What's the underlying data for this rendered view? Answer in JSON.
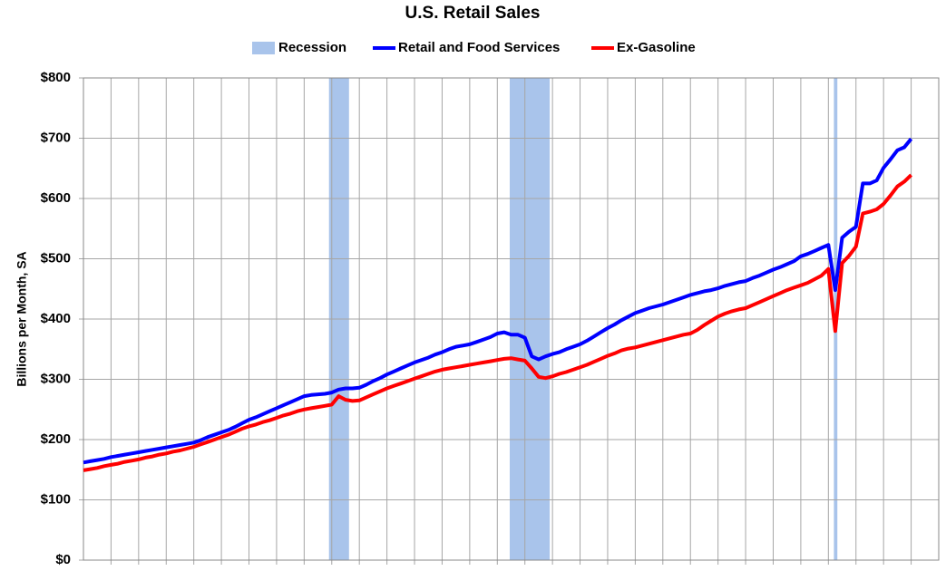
{
  "chart_data": {
    "type": "line",
    "title": "U.S. Retail Sales",
    "ylabel": "Billions per Month, SA",
    "categories": [
      null,
      null,
      null,
      null,
      null,
      null,
      null,
      null,
      null,
      null,
      null,
      null,
      null,
      null,
      null,
      null,
      null,
      null,
      null,
      null,
      null,
      null,
      null,
      null,
      null,
      null,
      null,
      null,
      null,
      null,
      null,
      null,
      null,
      null,
      null,
      null,
      null,
      null,
      null,
      null,
      null,
      null,
      null,
      null,
      null,
      null,
      null,
      null,
      null,
      null,
      null,
      null,
      null,
      null,
      null,
      null,
      null,
      null,
      null,
      null,
      null,
      null,
      null,
      null,
      null,
      null,
      null,
      null,
      null,
      null,
      null,
      null,
      null,
      null,
      null,
      null,
      null,
      null,
      null,
      null,
      null,
      null,
      null,
      null,
      null,
      null,
      null,
      null,
      null,
      null,
      null,
      null,
      null,
      null,
      null,
      null,
      null,
      null,
      null,
      null,
      null,
      null,
      null,
      null,
      null,
      null,
      null,
      null,
      null,
      null,
      null,
      null,
      null,
      null,
      null,
      null,
      null,
      null,
      null,
      null,
      null
    ],
    "series": [
      {
        "name": "Retail and Food Services",
        "color": "#0000ff",
        "values": [
          162,
          164,
          166,
          168,
          171,
          173,
          175,
          177,
          179,
          181,
          183,
          185,
          187,
          189,
          191,
          193,
          195,
          199,
          204,
          208,
          212,
          216,
          221,
          227,
          233,
          237,
          242,
          247,
          252,
          257,
          262,
          267,
          272,
          274,
          275,
          276,
          278,
          283,
          285,
          285,
          286,
          291,
          297,
          302,
          308,
          313,
          318,
          323,
          328,
          332,
          336,
          341,
          345,
          350,
          354,
          356,
          358,
          362,
          366,
          370,
          376,
          378,
          374,
          374,
          369,
          338,
          333,
          338,
          342,
          345,
          350,
          354,
          358,
          364,
          371,
          378,
          385,
          391,
          398,
          404,
          410,
          414,
          418,
          421,
          424,
          428,
          432,
          436,
          440,
          443,
          446,
          448,
          451,
          455,
          458,
          461,
          463,
          468,
          472,
          477,
          482,
          486,
          491,
          496,
          504,
          508,
          513,
          518,
          523,
          448,
          535,
          545,
          553,
          625,
          625,
          630,
          651,
          665,
          680,
          685,
          699
        ]
      },
      {
        "name": "Ex-Gasoline",
        "color": "#ff0000",
        "values": [
          149,
          151,
          153,
          156,
          158,
          160,
          163,
          165,
          167,
          170,
          172,
          175,
          177,
          180,
          182,
          185,
          188,
          192,
          196,
          200,
          204,
          208,
          213,
          218,
          222,
          225,
          229,
          232,
          236,
          240,
          243,
          247,
          250,
          252,
          254,
          256,
          258,
          272,
          266,
          264,
          265,
          270,
          275,
          280,
          285,
          289,
          293,
          297,
          301,
          305,
          309,
          313,
          316,
          318,
          320,
          322,
          324,
          326,
          328,
          330,
          332,
          334,
          335,
          333,
          331,
          318,
          304,
          302,
          305,
          309,
          312,
          316,
          320,
          324,
          329,
          334,
          339,
          343,
          348,
          351,
          353,
          356,
          359,
          362,
          365,
          368,
          371,
          374,
          376,
          382,
          390,
          397,
          404,
          409,
          413,
          416,
          418,
          423,
          428,
          433,
          438,
          443,
          448,
          452,
          456,
          460,
          466,
          472,
          483,
          380,
          493,
          505,
          520,
          575,
          578,
          582,
          591,
          605,
          620,
          628,
          639
        ]
      }
    ],
    "recession": {
      "name": "Recession",
      "color": "#a9c4eb",
      "spans": [
        [
          35.6,
          38.5
        ],
        [
          61.8,
          67.6
        ],
        [
          108.8,
          109.3
        ]
      ]
    },
    "ylim": [
      0,
      800
    ],
    "yticks": [
      {
        "value": 0,
        "label": "$0"
      },
      {
        "value": 100,
        "label": "$100"
      },
      {
        "value": 200,
        "label": "$200"
      },
      {
        "value": 300,
        "label": "$300"
      },
      {
        "value": 400,
        "label": "$400"
      },
      {
        "value": 500,
        "label": "$500"
      },
      {
        "value": 600,
        "label": "$600"
      },
      {
        "value": 700,
        "label": "$700"
      },
      {
        "value": 800,
        "label": "$800"
      }
    ],
    "grid": true
  }
}
